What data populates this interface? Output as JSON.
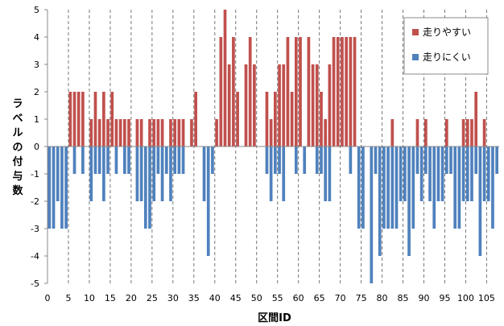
{
  "chart_data": {
    "type": "bar",
    "xlabel": "区間ID",
    "ylabel": "ラベルの付与数",
    "ylim": [
      -5,
      5
    ],
    "xlim": [
      0,
      108
    ],
    "yticks": [
      5,
      4,
      3,
      2,
      1,
      0,
      -1,
      -2,
      -3,
      -4,
      -5
    ],
    "xticks": [
      0,
      5,
      10,
      15,
      20,
      25,
      30,
      35,
      40,
      45,
      50,
      55,
      60,
      65,
      70,
      75,
      80,
      85,
      90,
      95,
      100,
      105
    ],
    "grid": {
      "vertical_dashed_every": 5,
      "zero_line": true
    },
    "legend_position": "top-right",
    "x": [
      0,
      1,
      2,
      3,
      4,
      5,
      6,
      7,
      8,
      9,
      10,
      11,
      12,
      13,
      14,
      15,
      16,
      17,
      18,
      19,
      20,
      21,
      22,
      23,
      24,
      25,
      26,
      27,
      28,
      29,
      30,
      31,
      32,
      33,
      34,
      35,
      36,
      37,
      38,
      39,
      40,
      41,
      42,
      43,
      44,
      45,
      46,
      47,
      48,
      49,
      50,
      51,
      52,
      53,
      54,
      55,
      56,
      57,
      58,
      59,
      60,
      61,
      62,
      63,
      64,
      65,
      66,
      67,
      68,
      69,
      70,
      71,
      72,
      73,
      74,
      75,
      76,
      77,
      78,
      79,
      80,
      81,
      82,
      83,
      84,
      85,
      86,
      87,
      88,
      89,
      90,
      91,
      92,
      93,
      94,
      95,
      96,
      97,
      98,
      99,
      100,
      101,
      102,
      103,
      104,
      105,
      106,
      107
    ],
    "series": [
      {
        "name": "走りやすい",
        "color": "#c0504d",
        "values": [
          0,
          0,
          0,
          0,
          0,
          2,
          2,
          2,
          2,
          0,
          1,
          2,
          1,
          2,
          1,
          2,
          1,
          1,
          1,
          1,
          0,
          1,
          1,
          0,
          1,
          1,
          1,
          1,
          0,
          1,
          1,
          1,
          1,
          0,
          1,
          2,
          0,
          0,
          0,
          0,
          1,
          4,
          5,
          3,
          4,
          2,
          0,
          3,
          4,
          3,
          0,
          0,
          2,
          1,
          2,
          3,
          3,
          4,
          2,
          4,
          4,
          0,
          4,
          3,
          3,
          2,
          1,
          3,
          4,
          4,
          4,
          4,
          4,
          4,
          0,
          0,
          0,
          0,
          0,
          0,
          0,
          0,
          1,
          0,
          0,
          0,
          0,
          0,
          1,
          0,
          1,
          0,
          0,
          0,
          0,
          1,
          0,
          0,
          0,
          1,
          1,
          1,
          2,
          0,
          1,
          0,
          0,
          0
        ]
      },
      {
        "name": "走りにくい",
        "color": "#4f81bd",
        "values": [
          -3,
          -3,
          -2,
          -3,
          -3,
          0,
          -1,
          0,
          -1,
          0,
          -2,
          -1,
          -1,
          -2,
          -1,
          0,
          -1,
          0,
          -1,
          -1,
          0,
          -2,
          -2,
          -3,
          -3,
          -2,
          -1,
          -2,
          -1,
          -2,
          -1,
          -1,
          -1,
          0,
          0,
          0,
          0,
          -2,
          -4,
          -1,
          0,
          0,
          0,
          0,
          0,
          0,
          0,
          0,
          0,
          0,
          0,
          0,
          -1,
          -2,
          -1,
          -1,
          -2,
          0,
          0,
          -1,
          0,
          -1,
          0,
          0,
          -1,
          -1,
          -2,
          -2,
          0,
          0,
          0,
          0,
          -1,
          0,
          -3,
          -3,
          0,
          -5,
          -1,
          -4,
          -3,
          -3,
          -3,
          -3,
          -2,
          -2,
          -4,
          -3,
          -1,
          -2,
          -1,
          -2,
          -3,
          -2,
          -2,
          -1,
          -1,
          -3,
          -3,
          -2,
          -2,
          -2,
          -1,
          -4,
          -2,
          -2,
          -3,
          -1
        ]
      }
    ]
  }
}
